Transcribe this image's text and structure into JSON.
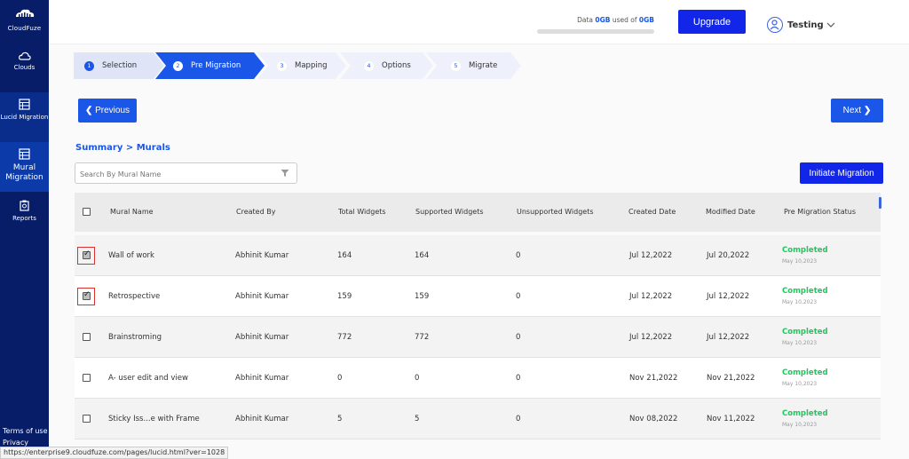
{
  "sidebar": {
    "brand": "CloudFuze",
    "items": [
      {
        "label": "Clouds"
      },
      {
        "label": "Lucid Migration"
      },
      {
        "label": "Mural Migration"
      },
      {
        "label": "Reports"
      }
    ],
    "footer": [
      "Terms of use",
      "Privacy policy"
    ]
  },
  "topbar": {
    "usage_prefix": "Data ",
    "usage_used": "0GB",
    "usage_mid": " used of ",
    "usage_total": "0GB",
    "upgrade_label": "Upgrade",
    "user_name": "Testing"
  },
  "steps": [
    {
      "num": "1",
      "label": "Selection"
    },
    {
      "num": "2",
      "label": "Pre Migration"
    },
    {
      "num": "3",
      "label": "Mapping"
    },
    {
      "num": "4",
      "label": "Options"
    },
    {
      "num": "5",
      "label": "Migrate"
    }
  ],
  "nav": {
    "previous_label": "Previous",
    "next_label": "Next"
  },
  "breadcrumb": "Summary > Murals",
  "search": {
    "placeholder": "Search By Mural Name"
  },
  "initiate_label": "Initiate Migration",
  "table": {
    "columns": [
      "Mural Name",
      "Created By",
      "Total Widgets",
      "Supported Widgets",
      "Unsupported Widgets",
      "Created Date",
      "Modified Date",
      "Pre Migration Status"
    ],
    "rows": [
      {
        "checked": true,
        "name": "Wall of work",
        "created_by": "Abhinit Kumar",
        "total": "164",
        "supported": "164",
        "unsupported": "0",
        "created": "Jul 12,2022",
        "modified": "Jul 20,2022",
        "status": "Completed",
        "status_date": "May 10,2023"
      },
      {
        "checked": true,
        "name": "Retrospective",
        "created_by": "Abhinit Kumar",
        "total": "159",
        "supported": "159",
        "unsupported": "0",
        "created": "Jul 12,2022",
        "modified": "Jul 12,2022",
        "status": "Completed",
        "status_date": "May 10,2023"
      },
      {
        "checked": false,
        "name": "Brainstroming",
        "created_by": "Abhinit Kumar",
        "total": "772",
        "supported": "772",
        "unsupported": "0",
        "created": "Jul 12,2022",
        "modified": "Jul 12,2022",
        "status": "Completed",
        "status_date": "May 10,2023"
      },
      {
        "checked": false,
        "name": "A- user edit and view",
        "created_by": "Abhinit Kumar",
        "total": "0",
        "supported": "0",
        "unsupported": "0",
        "created": "Nov 21,2022",
        "modified": "Nov 21,2022",
        "status": "Completed",
        "status_date": "May 10,2023"
      },
      {
        "checked": false,
        "name": "Sticky Iss...e with Frame",
        "created_by": "Abhinit Kumar",
        "total": "5",
        "supported": "5",
        "unsupported": "0",
        "created": "Nov 08,2022",
        "modified": "Nov 11,2022",
        "status": "Completed",
        "status_date": "May 10,2023"
      }
    ]
  },
  "status_url": "https://enterprise9.cloudfuze.com/pages/lucid.html?ver=1028",
  "colors": {
    "sidebar": "#071d67",
    "primary": "#1a56e8",
    "accent": "#1126e8",
    "success": "#22c55e"
  }
}
